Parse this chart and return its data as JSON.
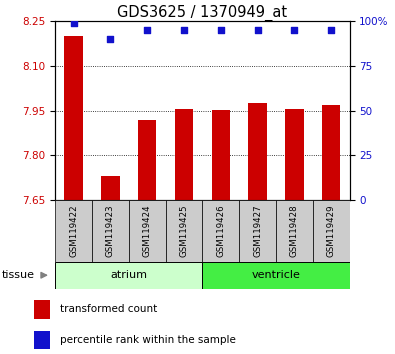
{
  "title": "GDS3625 / 1370949_at",
  "samples": [
    "GSM119422",
    "GSM119423",
    "GSM119424",
    "GSM119425",
    "GSM119426",
    "GSM119427",
    "GSM119428",
    "GSM119429"
  ],
  "red_values": [
    8.2,
    7.73,
    7.92,
    7.956,
    7.951,
    7.975,
    7.956,
    7.968
  ],
  "blue_values": [
    99,
    90,
    95,
    95,
    95,
    95,
    95,
    95
  ],
  "ylim_left": [
    7.65,
    8.25
  ],
  "ylim_right": [
    0,
    100
  ],
  "yticks_left": [
    7.65,
    7.8,
    7.95,
    8.1,
    8.25
  ],
  "yticks_right": [
    0,
    25,
    50,
    75,
    100
  ],
  "bar_bottom": 7.65,
  "bar_color": "#cc0000",
  "dot_color": "#1111cc",
  "groups": [
    {
      "label": "atrium",
      "start": 0,
      "end": 3,
      "color": "#ccffcc"
    },
    {
      "label": "ventricle",
      "start": 4,
      "end": 7,
      "color": "#44ee44"
    }
  ],
  "tissue_label": "tissue",
  "legend_items": [
    {
      "label": "transformed count",
      "color": "#cc0000"
    },
    {
      "label": "percentile rank within the sample",
      "color": "#1111cc"
    }
  ],
  "tick_label_color_left": "#cc0000",
  "tick_label_color_right": "#1111cc",
  "sample_box_color": "#cccccc",
  "plot_bg_color": "white",
  "background_color": "white"
}
